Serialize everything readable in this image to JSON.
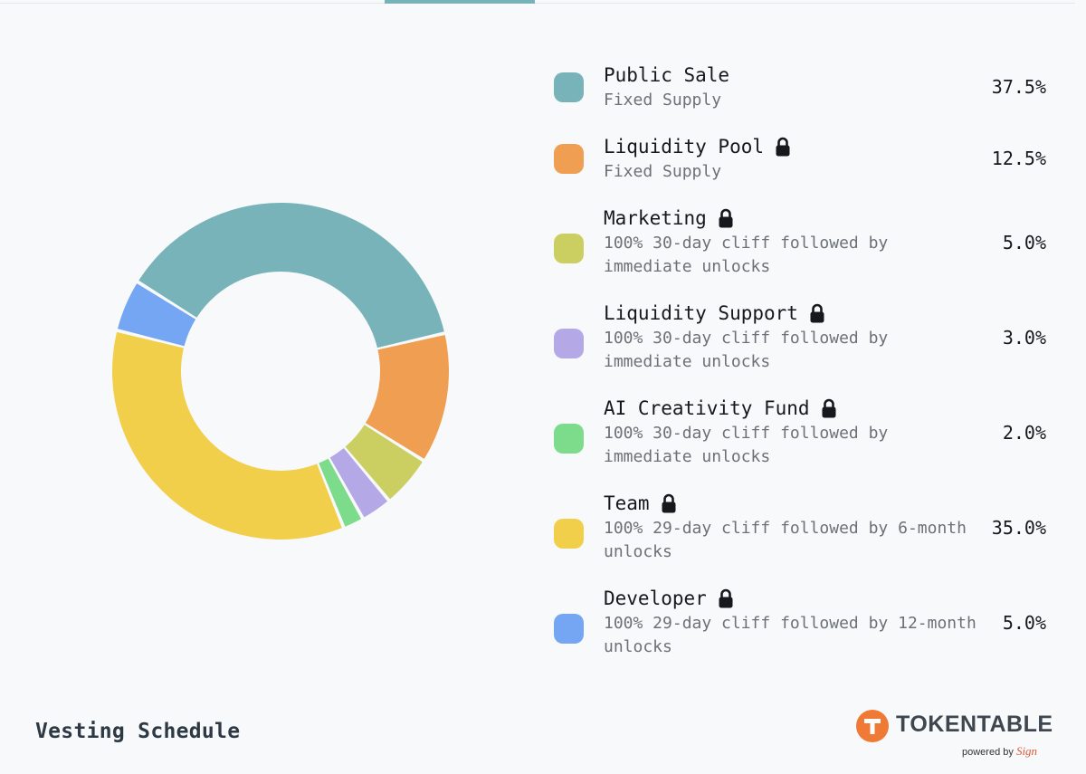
{
  "chart_data": {
    "type": "pie",
    "title": "Vesting Schedule",
    "categories": [
      "Public Sale",
      "Liquidity Pool",
      "Marketing",
      "Liquidity Support",
      "AI Creativity Fund",
      "Team",
      "Developer"
    ],
    "values": [
      37.5,
      12.5,
      5.0,
      3.0,
      2.0,
      35.0,
      5.0
    ],
    "colors": [
      "#78b3b9",
      "#f09e51",
      "#cbce60",
      "#b4a8e6",
      "#7ddc8b",
      "#f2cf4a",
      "#74a6f4"
    ]
  },
  "legend": [
    {
      "name": "Public Sale",
      "desc": "Fixed Supply",
      "pct": "37.5%",
      "locked": false,
      "color": "#78b3b9"
    },
    {
      "name": "Liquidity Pool",
      "desc": "Fixed Supply",
      "pct": "12.5%",
      "locked": true,
      "color": "#f09e51"
    },
    {
      "name": "Marketing",
      "desc": "100% 30-day cliff followed by immediate unlocks",
      "pct": "5.0%",
      "locked": true,
      "color": "#cbce60"
    },
    {
      "name": "Liquidity Support",
      "desc": "100% 30-day cliff followed by immediate unlocks",
      "pct": "3.0%",
      "locked": true,
      "color": "#b4a8e6"
    },
    {
      "name": "AI Creativity Fund",
      "desc": "100% 30-day cliff followed by immediate unlocks",
      "pct": "2.0%",
      "locked": true,
      "color": "#7ddc8b"
    },
    {
      "name": "Team",
      "desc": "100% 29-day cliff followed by 6-month unlocks",
      "pct": "35.0%",
      "locked": true,
      "color": "#f2cf4a"
    },
    {
      "name": "Developer",
      "desc": "100% 29-day cliff followed by 12-month unlocks",
      "pct": "5.0%",
      "locked": true,
      "color": "#74a6f4"
    }
  ],
  "footer": {
    "title": "Vesting Schedule",
    "brand": "TOKENTABLE",
    "powered_by": "powered by",
    "powered_sign": "Sign"
  }
}
